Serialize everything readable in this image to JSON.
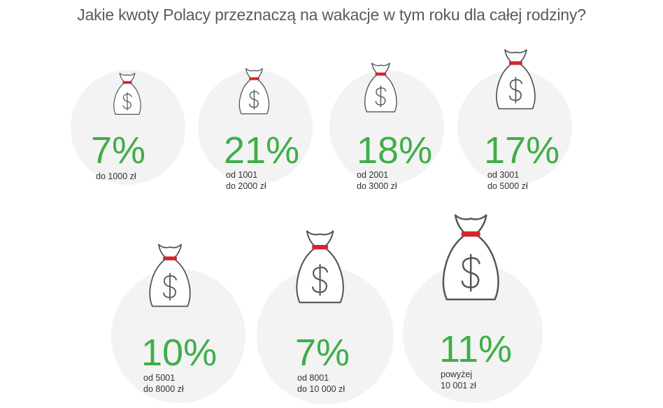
{
  "title": "Jakie kwoty Polacy przeznaczą na wakacje w tym roku dla całej rodziny?",
  "colors": {
    "accent": "#3fae49",
    "tie": "#d8232a",
    "circle": "#f3f3f3",
    "outline": "#555555"
  },
  "icon": "money-bag-icon",
  "chart_data": {
    "type": "pictograph",
    "title": "Jakie kwoty Polacy przeznaczą na wakacje w tym roku dla całej rodziny?",
    "unit": "%",
    "items": [
      {
        "value": 7,
        "display": "7%",
        "label": [
          "do 1000 zł"
        ]
      },
      {
        "value": 21,
        "display": "21%",
        "label": [
          "od 1001",
          "do 2000 zł"
        ]
      },
      {
        "value": 18,
        "display": "18%",
        "label": [
          "od 2001",
          "do 3000 zł"
        ]
      },
      {
        "value": 17,
        "display": "17%",
        "label": [
          "od 3001",
          "do 5000 zł"
        ]
      },
      {
        "value": 10,
        "display": "10%",
        "label": [
          "od 5001",
          "do 8000 zł"
        ]
      },
      {
        "value": 7,
        "display": "7%",
        "label": [
          "od 8001",
          "do 10 000 zł"
        ]
      },
      {
        "value": 11,
        "display": "11%",
        "label": [
          "powyżej",
          "10 001 zł"
        ]
      }
    ]
  }
}
